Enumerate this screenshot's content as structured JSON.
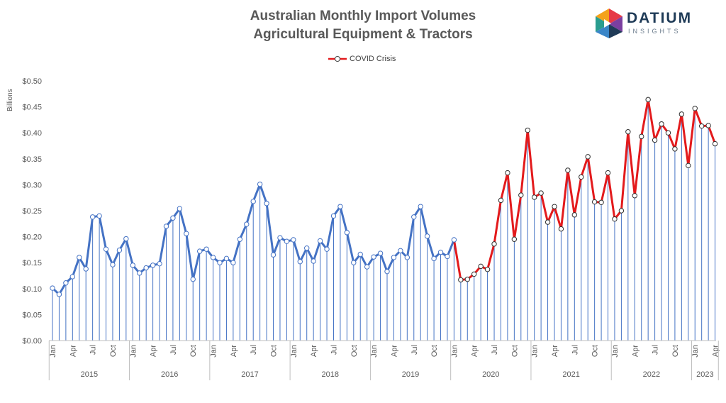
{
  "title_line1": "Australian Monthly Import Volumes",
  "title_line2": "Agricultural Equipment & Tractors",
  "brand": {
    "name": "DATIUM",
    "subtitle": "INSIGHTS",
    "icon": "datium-logo-icon",
    "colors": [
      "#e63946",
      "#f4a21b",
      "#2a9d8f",
      "#3a86c8",
      "#7b3fa0",
      "#1f3b57"
    ]
  },
  "colors": {
    "normal_line": "#4472c4",
    "covid_line": "#e31a1c",
    "drop_lines": "#4472c4",
    "axis_text": "#595959",
    "grid_separator": "#bfbfbf"
  },
  "chart_data": {
    "type": "line",
    "title": "Australian Monthly Import Volumes Agricultural Equipment & Tractors",
    "ylabel": "Billions",
    "ylim": [
      0,
      0.5
    ],
    "yticks": [
      "$0.00",
      "$0.05",
      "$0.10",
      "$0.15",
      "$0.20",
      "$0.25",
      "$0.30",
      "$0.35",
      "$0.40",
      "$0.45",
      "$0.50"
    ],
    "ytick_values": [
      0,
      0.05,
      0.1,
      0.15,
      0.2,
      0.25,
      0.3,
      0.35,
      0.4,
      0.45,
      0.5
    ],
    "x_month_labels": [
      "Jan",
      "Apr",
      "Jul",
      "Oct"
    ],
    "years": [
      "2015",
      "2016",
      "2017",
      "2018",
      "2019",
      "2020",
      "2021",
      "2022",
      "2023"
    ],
    "last_year_month_labels": [
      "Jan",
      "Apr"
    ],
    "legend": [
      {
        "name": "COVID Crisis",
        "marker": "circle",
        "color": "#e31a1c"
      }
    ],
    "legend_position": "top-center",
    "drop_lines": true,
    "grid": false,
    "covid_start_index": 61,
    "values": [
      0.101,
      0.089,
      0.111,
      0.123,
      0.16,
      0.138,
      0.238,
      0.24,
      0.176,
      0.146,
      0.174,
      0.196,
      0.145,
      0.13,
      0.14,
      0.145,
      0.148,
      0.22,
      0.236,
      0.254,
      0.206,
      0.118,
      0.172,
      0.176,
      0.16,
      0.15,
      0.158,
      0.15,
      0.195,
      0.224,
      0.268,
      0.301,
      0.264,
      0.165,
      0.198,
      0.191,
      0.194,
      0.152,
      0.178,
      0.153,
      0.192,
      0.176,
      0.24,
      0.258,
      0.208,
      0.15,
      0.166,
      0.142,
      0.161,
      0.168,
      0.133,
      0.16,
      0.173,
      0.16,
      0.238,
      0.258,
      0.201,
      0.158,
      0.17,
      0.162,
      0.194,
      0.117,
      0.118,
      0.128,
      0.143,
      0.137,
      0.186,
      0.27,
      0.323,
      0.195,
      0.28,
      0.405,
      0.276,
      0.284,
      0.228,
      0.258,
      0.215,
      0.328,
      0.242,
      0.315,
      0.354,
      0.267,
      0.266,
      0.323,
      0.234,
      0.25,
      0.402,
      0.279,
      0.393,
      0.464,
      0.386,
      0.417,
      0.4,
      0.369,
      0.436,
      0.337,
      0.447,
      0.413,
      0.414,
      0.379
    ]
  }
}
